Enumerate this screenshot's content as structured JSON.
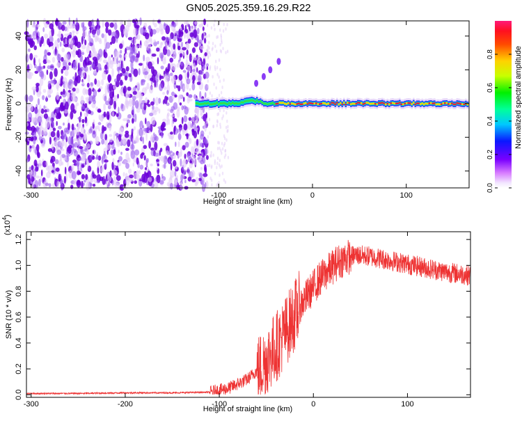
{
  "title": "GN05.2025.359.16.29.R22",
  "chart_data": [
    {
      "type": "heatmap",
      "id": "spectrogram",
      "xlabel": "Height of straight line (km)",
      "ylabel": "Frequency (Hz)",
      "xlim": [
        -305,
        167
      ],
      "ylim": [
        -50,
        49
      ],
      "xticks": [
        -300,
        -200,
        -100,
        0,
        100
      ],
      "xtick_labels": [
        "-300",
        "-200",
        "-100",
        "0",
        "100"
      ],
      "yticks": [
        -40,
        -20,
        0,
        20,
        40
      ],
      "ytick_labels": [
        "-40",
        "-20",
        "0",
        "20",
        "40"
      ],
      "colorbar": {
        "label": "Normalized spectral amplitude",
        "ticks": [
          0.0,
          0.2,
          0.4,
          0.6,
          0.8
        ],
        "tick_labels": [
          "0.0",
          "0.2",
          "0.4",
          "0.6",
          "0.8"
        ],
        "range": [
          0,
          1
        ]
      },
      "regions": {
        "noise_xrange": [
          -305,
          -112
        ],
        "noise_frequency_range": [
          -50,
          49
        ],
        "carrier_start_km": -125,
        "carrier_frequency_hz": 0,
        "carrier_peak_amplitude": 0.9,
        "flare_points": [
          [
            -60,
            12
          ],
          [
            -52,
            16
          ],
          [
            -45,
            20
          ],
          [
            -36,
            25
          ]
        ]
      },
      "colors": {
        "noise_low": "#e2ccf8",
        "noise_high": "#6a00d8",
        "carrier_core": "#e81c3a"
      }
    },
    {
      "type": "line",
      "id": "snr",
      "xlabel": "Height of straight line (km)",
      "ylabel": "SNR (10 * v/v)",
      "multiplier_label": "(x10",
      "multiplier_exponent": "4",
      "multiplier_close": ")",
      "xlim": [
        -305,
        167
      ],
      "ylim": [
        -0.02,
        1.26
      ],
      "xticks": [
        -300,
        -200,
        -100,
        0,
        100
      ],
      "xtick_labels": [
        "-300",
        "-200",
        "-100",
        "0",
        "100"
      ],
      "yticks": [
        0.0,
        0.2,
        0.4,
        0.6,
        0.8,
        1.0,
        1.2
      ],
      "ytick_labels": [
        "0.0",
        "0.2",
        "0.4",
        "0.6",
        "0.8",
        "1.0",
        "1.2"
      ],
      "series": [
        {
          "name": "SNR",
          "color": "#ee3333",
          "x": [
            -305,
            -250,
            -200,
            -150,
            -110,
            -90,
            -70,
            -55,
            -45,
            -35,
            -25,
            -15,
            -5,
            5,
            15,
            25,
            35,
            45,
            60,
            80,
            100,
            120,
            140,
            160,
            167
          ],
          "values": [
            0.01,
            0.01,
            0.015,
            0.015,
            0.02,
            0.05,
            0.12,
            0.22,
            0.32,
            0.42,
            0.55,
            0.68,
            0.78,
            0.88,
            0.95,
            1.02,
            1.06,
            1.08,
            1.07,
            1.04,
            1.01,
            0.98,
            0.95,
            0.93,
            0.92
          ]
        }
      ]
    }
  ]
}
